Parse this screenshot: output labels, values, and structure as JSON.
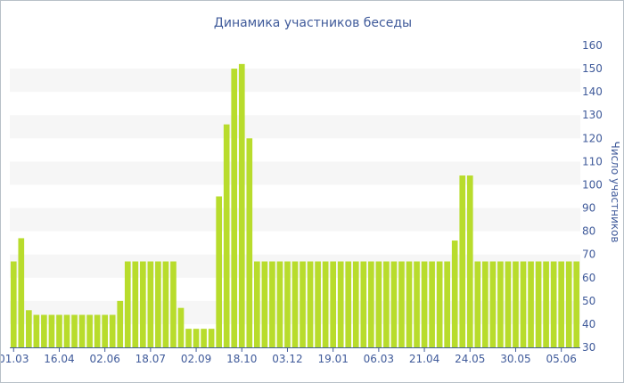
{
  "chart_data": {
    "type": "bar",
    "title": "Динамика участников беседы",
    "ylabel": "Число участников",
    "xlabel": "",
    "ylim": [
      30,
      160
    ],
    "yticks": [
      30,
      40,
      50,
      60,
      70,
      80,
      90,
      100,
      110,
      120,
      130,
      140,
      150,
      160
    ],
    "y_axis_side": "right",
    "grid": "alternating horizontal bands",
    "x_tick_labels": [
      "01.03",
      "16.04",
      "02.06",
      "18.07",
      "02.09",
      "18.10",
      "03.12",
      "19.01",
      "06.03",
      "21.04",
      "24.05",
      "30.05",
      "05.06"
    ],
    "x_tick_label_bar_index": [
      0,
      6,
      12,
      18,
      24,
      30,
      36,
      42,
      48,
      54,
      60,
      66,
      72
    ],
    "bar_color": "#b8dc2c",
    "values": [
      67,
      77,
      46,
      44,
      44,
      44,
      44,
      44,
      44,
      44,
      44,
      44,
      44,
      44,
      50,
      67,
      67,
      67,
      67,
      67,
      67,
      67,
      47,
      38,
      38,
      38,
      38,
      95,
      126,
      150,
      152,
      120,
      67,
      67,
      67,
      67,
      67,
      67,
      67,
      67,
      67,
      67,
      67,
      67,
      67,
      67,
      67,
      67,
      67,
      67,
      67,
      67,
      67,
      67,
      67,
      67,
      67,
      67,
      76,
      104,
      104,
      67,
      67,
      67,
      67,
      67,
      67,
      67,
      67,
      67,
      67,
      67,
      67,
      67,
      67
    ]
  }
}
